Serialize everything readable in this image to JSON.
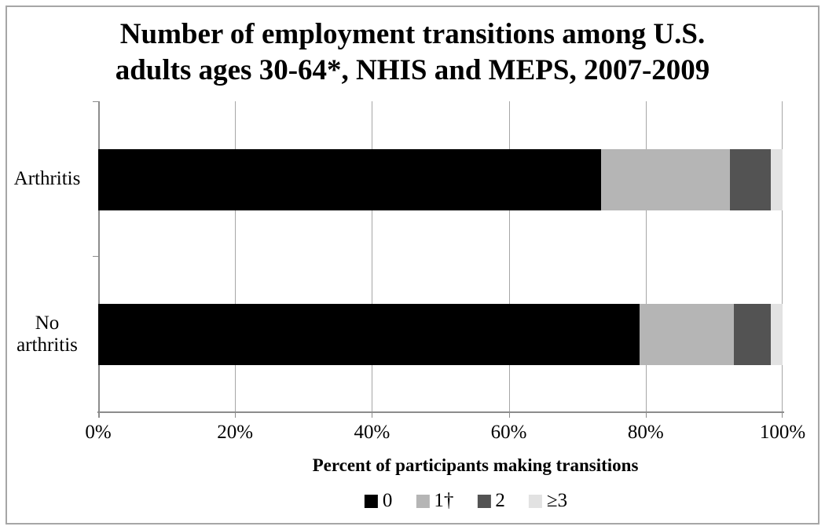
{
  "figure": {
    "title_lines": [
      "Number of employment transitions among U.S.",
      "adults ages 30-64*, NHIS and MEPS, 2007-2009"
    ]
  },
  "chart_data": {
    "type": "bar",
    "orientation": "horizontal",
    "stacked": true,
    "title": "Number of employment transitions among U.S. adults ages 30-64*, NHIS and MEPS, 2007-2009",
    "categories": [
      "Arthritis",
      "No arthritis"
    ],
    "series": [
      {
        "name": "0",
        "color": "#000000",
        "values": [
          73.5,
          79.1
        ]
      },
      {
        "name": "1†",
        "color": "#b5b5b5",
        "values": [
          18.8,
          13.8
        ]
      },
      {
        "name": "2",
        "color": "#535353",
        "values": [
          6.0,
          5.4
        ]
      },
      {
        "name": "≥3",
        "color": "#e2e2e2",
        "values": [
          1.7,
          1.7
        ]
      }
    ],
    "xlabel": "Percent of participants making transitions",
    "x_ticks": [
      "0%",
      "20%",
      "40%",
      "60%",
      "80%",
      "100%"
    ],
    "xlim": [
      0,
      100
    ],
    "grid": true,
    "legend_position": "bottom"
  },
  "colors": {
    "axis": "#8c8c8c",
    "gridline": "#a6a6a6",
    "frame_border": "#a6a6a6",
    "text": "#000000"
  }
}
